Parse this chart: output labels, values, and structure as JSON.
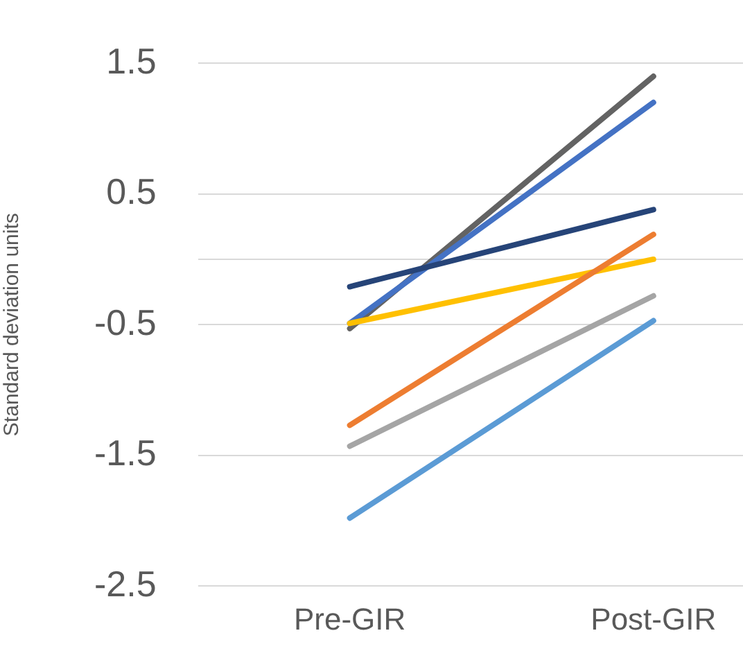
{
  "chart_data": {
    "type": "line",
    "ylabel": "Standard deviation units",
    "categories": [
      "Pre-GIR",
      "Post-GIR"
    ],
    "series": [
      {
        "color": "#5b9bd5",
        "values": [
          -1.98,
          -0.47
        ]
      },
      {
        "color": "#a5a5a5",
        "values": [
          -1.43,
          -0.28
        ]
      },
      {
        "color": "#ed7d31",
        "values": [
          -1.27,
          0.19
        ]
      },
      {
        "color": "#ffc000",
        "values": [
          -0.49,
          0.0
        ]
      },
      {
        "color": "#264478",
        "values": [
          -0.21,
          0.38
        ]
      },
      {
        "color": "#4472c4",
        "values": [
          -0.49,
          1.2
        ]
      },
      {
        "color": "#636363",
        "values": [
          -0.53,
          1.4
        ]
      }
    ],
    "ylim": [
      -2.5,
      1.5
    ],
    "yticks": [
      -2.5,
      -1.5,
      -0.5,
      {
        "value": 0,
        "label": null
      },
      0.5,
      1.5
    ],
    "grid": "y",
    "legend": false,
    "marker": "none",
    "line_style": "solid"
  }
}
